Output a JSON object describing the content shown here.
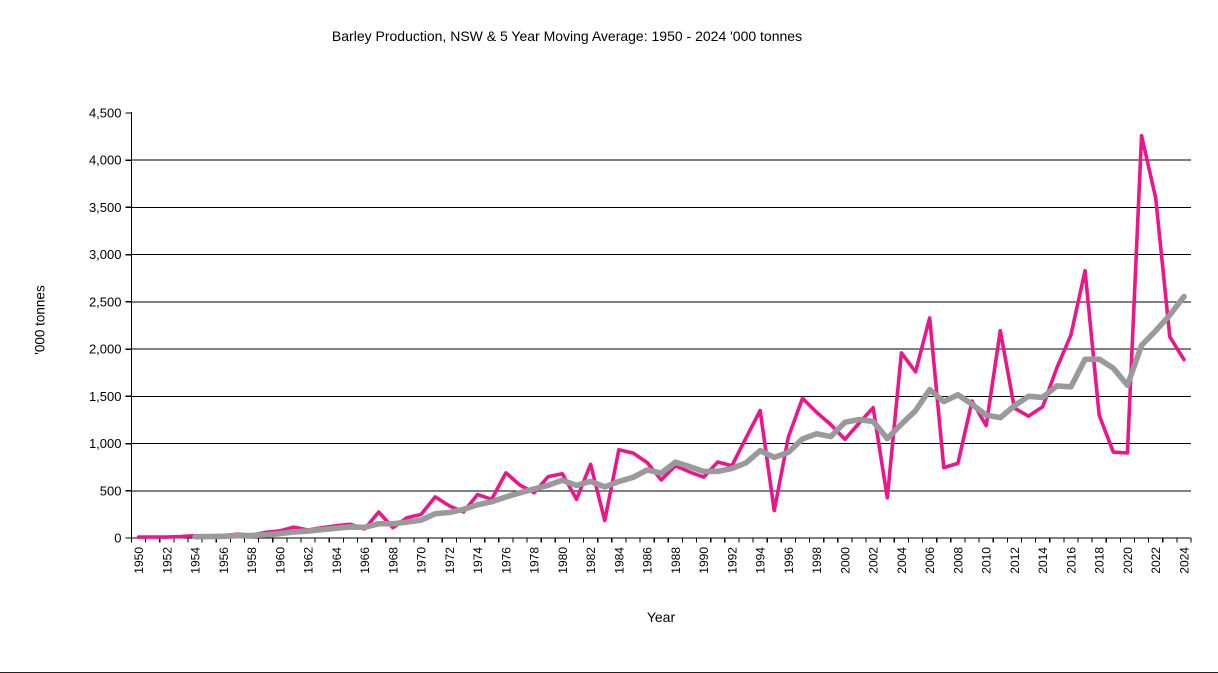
{
  "chart_data": {
    "type": "line",
    "title": "Barley Production, NSW & 5 Year Moving Average: 1950 - 2024 '000 tonnes",
    "xlabel": "Year",
    "ylabel": "'000 tonnes",
    "ylim": [
      0,
      4500
    ],
    "ytick_step": 500,
    "xtick_label_step": 2,
    "grid": "horizontal",
    "legend": "none",
    "years": [
      1950,
      1951,
      1952,
      1953,
      1954,
      1955,
      1956,
      1957,
      1958,
      1959,
      1960,
      1961,
      1962,
      1963,
      1964,
      1965,
      1966,
      1967,
      1968,
      1969,
      1970,
      1971,
      1972,
      1973,
      1974,
      1975,
      1976,
      1977,
      1978,
      1979,
      1980,
      1981,
      1982,
      1983,
      1984,
      1985,
      1986,
      1987,
      1988,
      1989,
      1990,
      1991,
      1992,
      1993,
      1994,
      1995,
      1996,
      1997,
      1998,
      1999,
      2000,
      2001,
      2002,
      2003,
      2004,
      2005,
      2006,
      2007,
      2008,
      2009,
      2010,
      2011,
      2012,
      2013,
      2014,
      2015,
      2016,
      2017,
      2018,
      2019,
      2020,
      2021,
      2022,
      2023,
      2024
    ],
    "series": [
      {
        "name": "Barley Production NSW ('000 tonnes)",
        "color": "#EC168C",
        "values": [
          10,
          10,
          10,
          15,
          25,
          15,
          25,
          40,
          30,
          60,
          75,
          115,
          85,
          110,
          130,
          145,
          95,
          275,
          110,
          215,
          250,
          435,
          340,
          275,
          460,
          410,
          690,
          560,
          480,
          650,
          680,
          410,
          780,
          185,
          935,
          900,
          800,
          615,
          765,
          700,
          645,
          805,
          765,
          1060,
          1350,
          290,
          1070,
          1480,
          1330,
          1200,
          1045,
          1215,
          1380,
          425,
          1960,
          1760,
          2330,
          745,
          790,
          1450,
          1190,
          2195,
          1375,
          1290,
          1390,
          1800,
          2150,
          2830,
          1300,
          910,
          900,
          4260,
          3600,
          2130,
          1890
        ]
      },
      {
        "name": "5 Year Moving Average",
        "color": "#9A9A9A",
        "derived": "trailing_mean_of_series_0",
        "window": 5
      }
    ],
    "axis_color": "#000000",
    "gridline_color": "#000000"
  }
}
